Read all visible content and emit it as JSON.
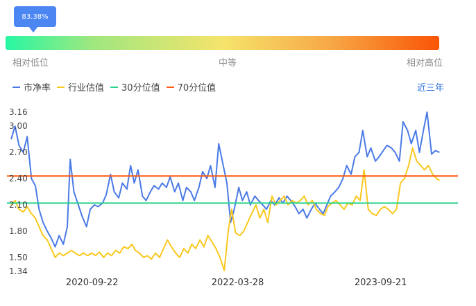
{
  "badge": {
    "value": "83.38%"
  },
  "scale": {
    "low": "相对低位",
    "mid": "中等",
    "high": "相对高位"
  },
  "legend": [
    {
      "name": "市净率",
      "color": "#4a7ae6"
    },
    {
      "name": "行业估值",
      "color": "#f9c81d"
    },
    {
      "name": "30分位值",
      "color": "#29d38b"
    },
    {
      "name": "70分位值",
      "color": "#ff5a10"
    }
  ],
  "range_button": "近三年",
  "chart_data": {
    "type": "line",
    "title": "",
    "xlabel": "",
    "ylabel": "",
    "ylim": [
      1.34,
      3.16
    ],
    "y_ticks": [
      "3.16",
      "3.00",
      "2.70",
      "2.40",
      "2.10",
      "1.80",
      "1.50",
      "1.34"
    ],
    "x_ticks": [
      "2020-09-22",
      "2022-03-28",
      "2023-09-21"
    ],
    "x_range": [
      "2019-11-20",
      "2024-07-10"
    ],
    "reference_lines": [
      {
        "name": "30分位值",
        "value": 2.12,
        "color": "#29d38b"
      },
      {
        "name": "70分位值",
        "value": 2.43,
        "color": "#ff5a10"
      }
    ],
    "series": [
      {
        "name": "市净率",
        "color": "#4a7ae6",
        "points": [
          [
            "2019-11-20",
            2.85
          ],
          [
            "2019-12-05",
            3.0
          ],
          [
            "2019-12-20",
            2.78
          ],
          [
            "2020-01-05",
            2.7
          ],
          [
            "2020-01-20",
            2.88
          ],
          [
            "2020-02-05",
            2.4
          ],
          [
            "2020-02-20",
            2.32
          ],
          [
            "2020-03-05",
            2.05
          ],
          [
            "2020-03-20",
            1.9
          ],
          [
            "2020-04-05",
            1.8
          ],
          [
            "2020-04-20",
            1.72
          ],
          [
            "2020-05-05",
            1.62
          ],
          [
            "2020-05-20",
            1.75
          ],
          [
            "2020-06-05",
            1.65
          ],
          [
            "2020-06-20",
            1.85
          ],
          [
            "2020-07-01",
            2.62
          ],
          [
            "2020-07-15",
            2.25
          ],
          [
            "2020-08-01",
            2.1
          ],
          [
            "2020-08-15",
            1.97
          ],
          [
            "2020-09-01",
            1.85
          ],
          [
            "2020-09-15",
            2.05
          ],
          [
            "2020-10-01",
            2.1
          ],
          [
            "2020-10-15",
            2.08
          ],
          [
            "2020-11-01",
            2.12
          ],
          [
            "2020-11-15",
            2.22
          ],
          [
            "2020-12-01",
            2.45
          ],
          [
            "2020-12-15",
            2.25
          ],
          [
            "2021-01-01",
            2.18
          ],
          [
            "2021-01-15",
            2.35
          ],
          [
            "2021-02-01",
            2.28
          ],
          [
            "2021-02-15",
            2.55
          ],
          [
            "2021-03-01",
            2.35
          ],
          [
            "2021-03-15",
            2.5
          ],
          [
            "2021-04-01",
            2.2
          ],
          [
            "2021-04-15",
            2.15
          ],
          [
            "2021-05-01",
            2.25
          ],
          [
            "2021-05-15",
            2.32
          ],
          [
            "2021-06-01",
            2.28
          ],
          [
            "2021-06-15",
            2.35
          ],
          [
            "2021-07-01",
            2.3
          ],
          [
            "2021-07-15",
            2.42
          ],
          [
            "2021-08-01",
            2.25
          ],
          [
            "2021-08-15",
            2.35
          ],
          [
            "2021-09-01",
            2.15
          ],
          [
            "2021-09-15",
            2.3
          ],
          [
            "2021-10-01",
            2.25
          ],
          [
            "2021-10-15",
            2.15
          ],
          [
            "2021-11-01",
            2.3
          ],
          [
            "2021-11-15",
            2.48
          ],
          [
            "2021-12-01",
            2.4
          ],
          [
            "2021-12-15",
            2.55
          ],
          [
            "2022-01-01",
            2.3
          ],
          [
            "2022-01-15",
            2.8
          ],
          [
            "2022-02-01",
            2.55
          ],
          [
            "2022-02-15",
            2.35
          ],
          [
            "2022-03-01",
            1.9
          ],
          [
            "2022-03-15",
            2.05
          ],
          [
            "2022-04-01",
            2.3
          ],
          [
            "2022-04-15",
            2.15
          ],
          [
            "2022-05-01",
            2.25
          ],
          [
            "2022-05-15",
            2.1
          ],
          [
            "2022-06-01",
            2.2
          ],
          [
            "2022-06-15",
            2.15
          ],
          [
            "2022-07-01",
            2.1
          ],
          [
            "2022-07-15",
            2.05
          ],
          [
            "2022-08-01",
            2.15
          ],
          [
            "2022-08-15",
            2.1
          ],
          [
            "2022-09-01",
            2.18
          ],
          [
            "2022-09-15",
            2.12
          ],
          [
            "2022-10-01",
            2.2
          ],
          [
            "2022-10-15",
            2.15
          ],
          [
            "2022-11-01",
            2.08
          ],
          [
            "2022-11-15",
            2.0
          ],
          [
            "2022-12-01",
            2.05
          ],
          [
            "2022-12-15",
            1.95
          ],
          [
            "2023-01-01",
            2.05
          ],
          [
            "2023-01-15",
            2.12
          ],
          [
            "2023-02-01",
            2.05
          ],
          [
            "2023-02-15",
            2.0
          ],
          [
            "2023-03-01",
            2.1
          ],
          [
            "2023-03-15",
            2.2
          ],
          [
            "2023-04-01",
            2.25
          ],
          [
            "2023-04-15",
            2.3
          ],
          [
            "2023-05-01",
            2.4
          ],
          [
            "2023-05-15",
            2.55
          ],
          [
            "2023-06-01",
            2.45
          ],
          [
            "2023-06-15",
            2.65
          ],
          [
            "2023-07-01",
            2.7
          ],
          [
            "2023-07-15",
            2.95
          ],
          [
            "2023-08-01",
            2.65
          ],
          [
            "2023-08-15",
            2.75
          ],
          [
            "2023-09-01",
            2.6
          ],
          [
            "2023-09-15",
            2.65
          ],
          [
            "2023-10-01",
            2.72
          ],
          [
            "2023-10-15",
            2.78
          ],
          [
            "2023-11-01",
            2.75
          ],
          [
            "2023-11-15",
            2.7
          ],
          [
            "2023-12-01",
            2.6
          ],
          [
            "2023-12-15",
            3.05
          ],
          [
            "2024-01-01",
            2.95
          ],
          [
            "2024-01-15",
            2.8
          ],
          [
            "2024-02-01",
            2.95
          ],
          [
            "2024-02-15",
            2.7
          ],
          [
            "2024-03-01",
            2.95
          ],
          [
            "2024-03-15",
            3.16
          ],
          [
            "2024-04-01",
            2.68
          ],
          [
            "2024-04-15",
            2.72
          ],
          [
            "2024-05-01",
            2.7
          ]
        ]
      },
      {
        "name": "行业估值",
        "color": "#f9c81d",
        "points": [
          [
            "2019-11-20",
            2.1
          ],
          [
            "2019-12-05",
            2.15
          ],
          [
            "2019-12-20",
            2.05
          ],
          [
            "2020-01-05",
            2.02
          ],
          [
            "2020-01-20",
            2.08
          ],
          [
            "2020-02-05",
            2.0
          ],
          [
            "2020-02-20",
            1.95
          ],
          [
            "2020-03-05",
            1.85
          ],
          [
            "2020-03-20",
            1.75
          ],
          [
            "2020-04-05",
            1.7
          ],
          [
            "2020-04-20",
            1.6
          ],
          [
            "2020-05-05",
            1.5
          ],
          [
            "2020-05-20",
            1.55
          ],
          [
            "2020-06-05",
            1.52
          ],
          [
            "2020-06-20",
            1.55
          ],
          [
            "2020-07-05",
            1.58
          ],
          [
            "2020-07-20",
            1.55
          ],
          [
            "2020-08-05",
            1.52
          ],
          [
            "2020-08-20",
            1.55
          ],
          [
            "2020-09-05",
            1.52
          ],
          [
            "2020-09-20",
            1.55
          ],
          [
            "2020-10-05",
            1.52
          ],
          [
            "2020-10-20",
            1.56
          ],
          [
            "2020-11-05",
            1.5
          ],
          [
            "2020-11-20",
            1.55
          ],
          [
            "2020-12-05",
            1.52
          ],
          [
            "2020-12-20",
            1.58
          ],
          [
            "2021-01-05",
            1.55
          ],
          [
            "2021-01-20",
            1.62
          ],
          [
            "2021-02-05",
            1.6
          ],
          [
            "2021-02-20",
            1.65
          ],
          [
            "2021-03-05",
            1.58
          ],
          [
            "2021-03-20",
            1.55
          ],
          [
            "2021-04-05",
            1.5
          ],
          [
            "2021-04-20",
            1.52
          ],
          [
            "2021-05-05",
            1.48
          ],
          [
            "2021-05-20",
            1.55
          ],
          [
            "2021-06-05",
            1.5
          ],
          [
            "2021-06-20",
            1.6
          ],
          [
            "2021-07-05",
            1.7
          ],
          [
            "2021-07-20",
            1.62
          ],
          [
            "2021-08-05",
            1.55
          ],
          [
            "2021-08-20",
            1.5
          ],
          [
            "2021-09-05",
            1.6
          ],
          [
            "2021-09-20",
            1.55
          ],
          [
            "2021-10-05",
            1.65
          ],
          [
            "2021-10-20",
            1.6
          ],
          [
            "2021-11-05",
            1.7
          ],
          [
            "2021-11-20",
            1.62
          ],
          [
            "2021-12-05",
            1.75
          ],
          [
            "2021-12-20",
            1.68
          ],
          [
            "2022-01-05",
            1.6
          ],
          [
            "2022-01-20",
            1.5
          ],
          [
            "2022-02-05",
            1.35
          ],
          [
            "2022-02-20",
            1.8
          ],
          [
            "2022-03-05",
            2.05
          ],
          [
            "2022-03-20",
            1.78
          ],
          [
            "2022-04-05",
            1.75
          ],
          [
            "2022-04-20",
            1.8
          ],
          [
            "2022-05-05",
            1.9
          ],
          [
            "2022-05-20",
            2.0
          ],
          [
            "2022-06-05",
            2.1
          ],
          [
            "2022-06-20",
            1.95
          ],
          [
            "2022-07-05",
            2.05
          ],
          [
            "2022-07-20",
            1.9
          ],
          [
            "2022-08-05",
            2.2
          ],
          [
            "2022-08-20",
            2.1
          ],
          [
            "2022-09-05",
            2.15
          ],
          [
            "2022-09-20",
            2.2
          ],
          [
            "2022-10-05",
            2.1
          ],
          [
            "2022-10-20",
            2.15
          ],
          [
            "2022-11-05",
            2.12
          ],
          [
            "2022-11-20",
            2.15
          ],
          [
            "2022-12-05",
            2.2
          ],
          [
            "2022-12-20",
            2.1
          ],
          [
            "2023-01-05",
            2.15
          ],
          [
            "2023-01-20",
            2.05
          ],
          [
            "2023-02-05",
            2.0
          ],
          [
            "2023-02-20",
            1.98
          ],
          [
            "2023-03-05",
            2.08
          ],
          [
            "2023-03-20",
            2.12
          ],
          [
            "2023-04-05",
            2.15
          ],
          [
            "2023-04-20",
            2.1
          ],
          [
            "2023-05-05",
            2.05
          ],
          [
            "2023-05-20",
            2.12
          ],
          [
            "2023-06-05",
            2.1
          ],
          [
            "2023-06-20",
            2.2
          ],
          [
            "2023-07-05",
            2.15
          ],
          [
            "2023-07-20",
            2.5
          ],
          [
            "2023-08-05",
            2.05
          ],
          [
            "2023-08-20",
            2.0
          ],
          [
            "2023-09-05",
            1.98
          ],
          [
            "2023-09-20",
            2.05
          ],
          [
            "2023-10-05",
            2.08
          ],
          [
            "2023-10-20",
            2.05
          ],
          [
            "2023-11-05",
            2.0
          ],
          [
            "2023-11-20",
            2.05
          ],
          [
            "2023-12-05",
            2.35
          ],
          [
            "2023-12-20",
            2.4
          ],
          [
            "2024-01-05",
            2.55
          ],
          [
            "2024-01-20",
            2.75
          ],
          [
            "2024-02-05",
            2.6
          ],
          [
            "2024-02-20",
            2.55
          ],
          [
            "2024-03-05",
            2.5
          ],
          [
            "2024-03-20",
            2.55
          ],
          [
            "2024-04-05",
            2.45
          ],
          [
            "2024-04-20",
            2.4
          ],
          [
            "2024-05-01",
            2.38
          ]
        ]
      }
    ]
  }
}
